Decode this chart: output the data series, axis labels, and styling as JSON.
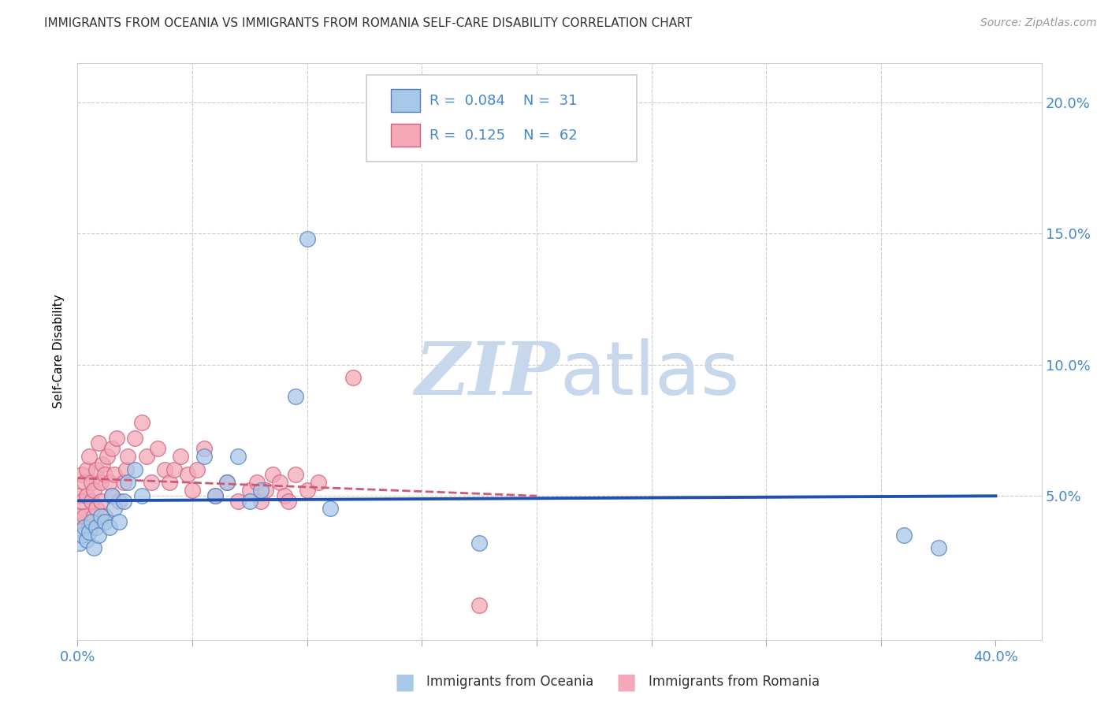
{
  "title": "IMMIGRANTS FROM OCEANIA VS IMMIGRANTS FROM ROMANIA SELF-CARE DISABILITY CORRELATION CHART",
  "source": "Source: ZipAtlas.com",
  "ylabel": "Self-Care Disability",
  "xlim": [
    0.0,
    0.42
  ],
  "ylim": [
    -0.005,
    0.215
  ],
  "color_oceania": "#a8c8e8",
  "color_romania": "#f4a8b8",
  "edge_oceania": "#5080c0",
  "edge_romania": "#d06080",
  "line_color_oceania": "#2050b0",
  "line_color_romania": "#d05878",
  "legend1_label": "Immigrants from Oceania",
  "legend2_label": "Immigrants from Romania",
  "R1": "0.084",
  "N1": "31",
  "R2": "0.125",
  "N2": "62",
  "oceania_x": [
    0.001,
    0.002,
    0.003,
    0.004,
    0.005,
    0.006,
    0.007,
    0.008,
    0.009,
    0.01,
    0.012,
    0.014,
    0.015,
    0.016,
    0.018,
    0.02,
    0.022,
    0.025,
    0.028,
    0.055,
    0.06,
    0.065,
    0.07,
    0.075,
    0.08,
    0.095,
    0.1,
    0.11,
    0.175,
    0.36,
    0.375
  ],
  "oceania_y": [
    0.032,
    0.035,
    0.038,
    0.033,
    0.036,
    0.04,
    0.03,
    0.038,
    0.035,
    0.042,
    0.04,
    0.038,
    0.05,
    0.045,
    0.04,
    0.048,
    0.055,
    0.06,
    0.05,
    0.065,
    0.05,
    0.055,
    0.065,
    0.048,
    0.052,
    0.088,
    0.148,
    0.045,
    0.032,
    0.035,
    0.03
  ],
  "romania_x": [
    0.0,
    0.001,
    0.001,
    0.002,
    0.002,
    0.003,
    0.003,
    0.004,
    0.004,
    0.005,
    0.005,
    0.006,
    0.006,
    0.007,
    0.007,
    0.008,
    0.008,
    0.009,
    0.01,
    0.01,
    0.011,
    0.012,
    0.012,
    0.013,
    0.014,
    0.015,
    0.015,
    0.016,
    0.017,
    0.018,
    0.02,
    0.021,
    0.022,
    0.025,
    0.028,
    0.03,
    0.032,
    0.035,
    0.038,
    0.04,
    0.042,
    0.045,
    0.048,
    0.05,
    0.052,
    0.055,
    0.06,
    0.065,
    0.07,
    0.075,
    0.078,
    0.08,
    0.082,
    0.085,
    0.088,
    0.09,
    0.092,
    0.095,
    0.1,
    0.105,
    0.12,
    0.175
  ],
  "romania_y": [
    0.04,
    0.05,
    0.042,
    0.048,
    0.058,
    0.042,
    0.055,
    0.05,
    0.06,
    0.038,
    0.065,
    0.048,
    0.055,
    0.042,
    0.052,
    0.06,
    0.045,
    0.07,
    0.055,
    0.048,
    0.062,
    0.058,
    0.042,
    0.065,
    0.055,
    0.05,
    0.068,
    0.058,
    0.072,
    0.048,
    0.055,
    0.06,
    0.065,
    0.072,
    0.078,
    0.065,
    0.055,
    0.068,
    0.06,
    0.055,
    0.06,
    0.065,
    0.058,
    0.052,
    0.06,
    0.068,
    0.05,
    0.055,
    0.048,
    0.052,
    0.055,
    0.048,
    0.052,
    0.058,
    0.055,
    0.05,
    0.048,
    0.058,
    0.052,
    0.055,
    0.095,
    0.008
  ]
}
